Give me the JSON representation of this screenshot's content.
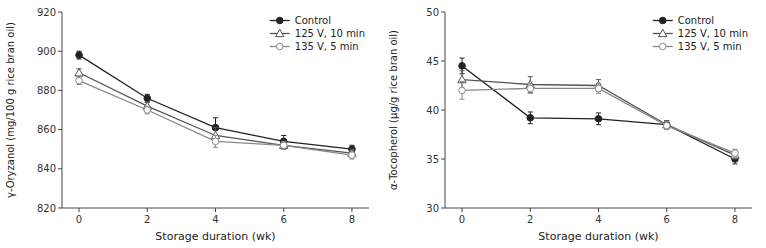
{
  "chart_data": [
    {
      "type": "line",
      "x": [
        0,
        2,
        4,
        6,
        8
      ],
      "xlabel": "Storage duration (wk)",
      "ylabel": "γ-Oryzanol (mg/100 g rice bran oil)",
      "xlim": [
        -0.5,
        8.5
      ],
      "xticks": [
        0,
        2,
        4,
        6,
        8
      ],
      "ylim": [
        820,
        920
      ],
      "yticks": [
        820,
        840,
        860,
        880,
        900,
        920
      ],
      "legend": "upper right",
      "series": [
        {
          "name": "Control",
          "color": "#222222",
          "marker": "circle",
          "values": [
            898,
            876,
            861,
            854,
            850
          ],
          "errors": [
            2,
            2,
            5,
            3,
            2
          ]
        },
        {
          "name": "125 V, 10 min",
          "color": "#555555",
          "marker": "triangle-open",
          "values": [
            889,
            872,
            857,
            852,
            848
          ],
          "errors": [
            2,
            2,
            4,
            2,
            2
          ]
        },
        {
          "name": "135 V, 5 min",
          "color": "#888888",
          "marker": "circle-open",
          "values": [
            885,
            870,
            854,
            852,
            847
          ],
          "errors": [
            2,
            2,
            3,
            2,
            2
          ]
        }
      ]
    },
    {
      "type": "line",
      "x": [
        0,
        2,
        4,
        6,
        8
      ],
      "xlabel": "Storage duration (wk)",
      "ylabel": "α-Tocopherol (μg/g rice bran oil)",
      "xlim": [
        -0.5,
        8.5
      ],
      "xticks": [
        0,
        2,
        4,
        6,
        8
      ],
      "ylim": [
        30,
        50
      ],
      "yticks": [
        30,
        35,
        40,
        45,
        50
      ],
      "legend": "upper right",
      "series": [
        {
          "name": "Control",
          "color": "#222222",
          "marker": "circle",
          "values": [
            44.5,
            39.2,
            39.1,
            38.5,
            35.0
          ],
          "errors": [
            0.8,
            0.6,
            0.6,
            0.4,
            0.5
          ]
        },
        {
          "name": "125 V, 10 min",
          "color": "#555555",
          "marker": "triangle-open",
          "values": [
            43.1,
            42.6,
            42.5,
            38.5,
            35.4
          ],
          "errors": [
            0.9,
            0.8,
            0.6,
            0.4,
            0.4
          ]
        },
        {
          "name": "135 V, 5 min",
          "color": "#888888",
          "marker": "circle-open",
          "values": [
            42.0,
            42.2,
            42.2,
            38.4,
            35.6
          ],
          "errors": [
            0.9,
            0.5,
            0.5,
            0.4,
            0.4
          ]
        }
      ]
    }
  ]
}
